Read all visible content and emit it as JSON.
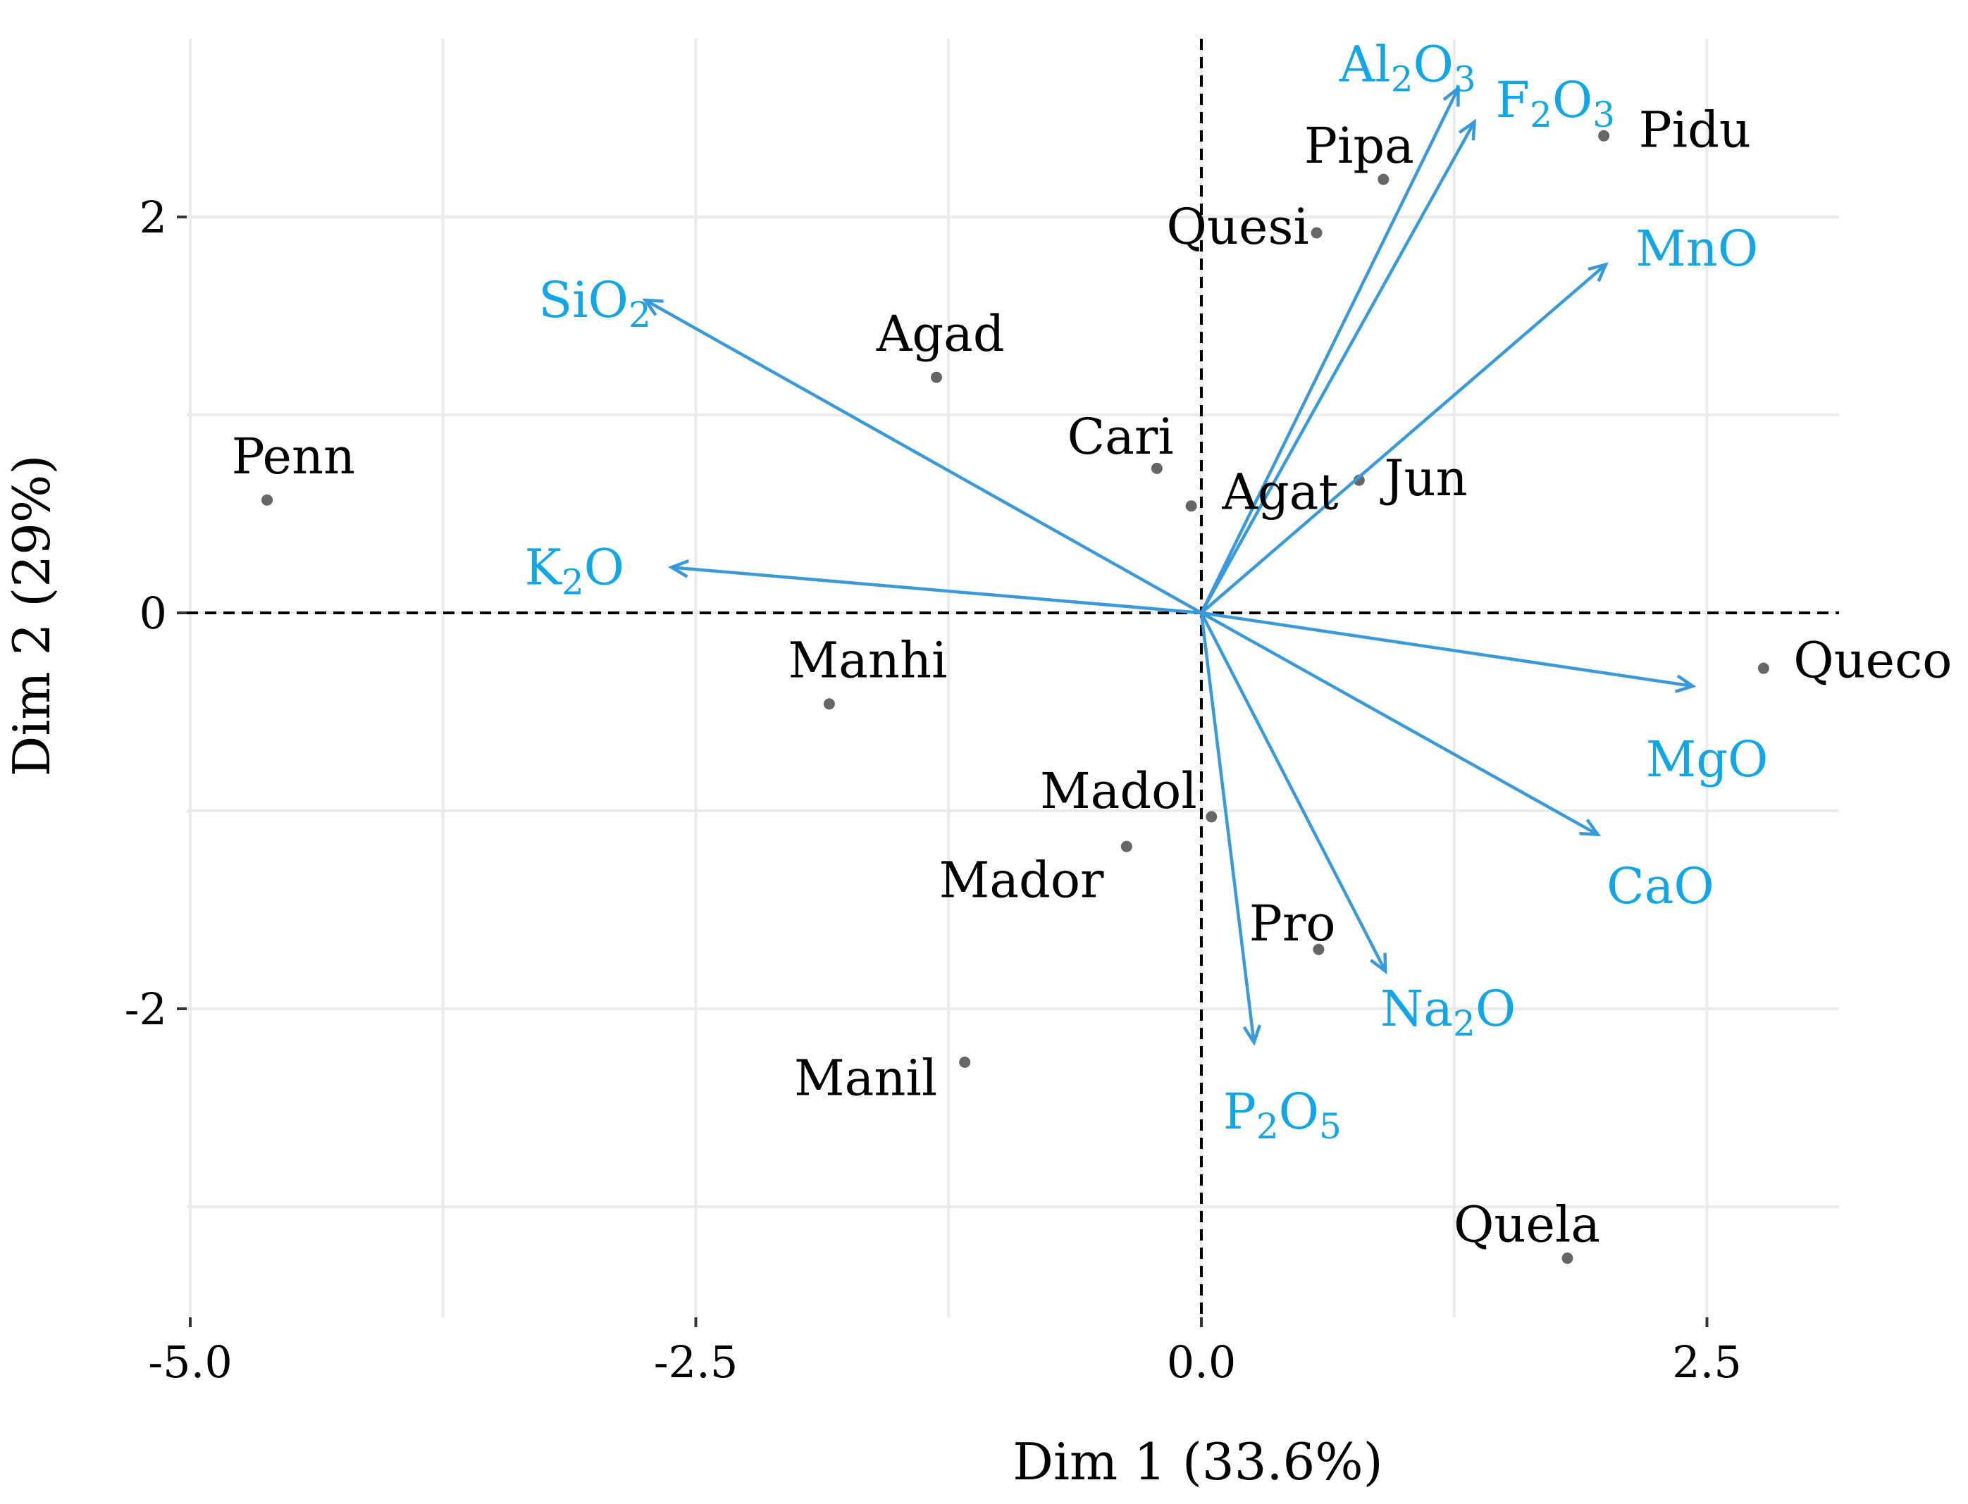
{
  "chart_data": {
    "type": "scatter",
    "subtype": "pca-biplot",
    "xlabel": "Dim 1 (33.6%)",
    "ylabel": "Dim 2 (29%)",
    "xlim": [
      -5.0,
      3.15
    ],
    "ylim": [
      -3.6,
      2.9
    ],
    "xticks": [
      -5.0,
      -2.5,
      0.0,
      2.5
    ],
    "xtick_labels": [
      "-5.0",
      "-2.5",
      "0.0",
      "2.5"
    ],
    "yticks": [
      -2,
      0,
      2
    ],
    "ytick_labels": [
      "-2",
      "0",
      "2"
    ],
    "x_minor_grid": [
      -3.75,
      -1.25,
      1.25
    ],
    "y_minor_grid": [
      -3,
      -1,
      1
    ],
    "grid": true,
    "reference_lines": {
      "x": 0,
      "y": 0,
      "style": "dashed"
    },
    "point_color": "#666666",
    "vector_color": "#3a9ad9",
    "vector_label_color": "#12a6e6",
    "observations": [
      {
        "name": "Penn",
        "x": -4.62,
        "y": 0.57,
        "label_dx": 0.13,
        "label_dy": 0.22
      },
      {
        "name": "Agad",
        "x": -1.31,
        "y": 1.19,
        "label_dx": 0.02,
        "label_dy": 0.22
      },
      {
        "name": "Cari",
        "x": -0.22,
        "y": 0.73,
        "label_dx": -0.18,
        "label_dy": 0.16
      },
      {
        "name": "Agat",
        "x": -0.05,
        "y": 0.54,
        "label_dx": 0.44,
        "label_dy": 0.07
      },
      {
        "name": "Jun",
        "x": 0.78,
        "y": 0.67,
        "label_dx": 0.33,
        "label_dy": 0.01
      },
      {
        "name": "Quesi",
        "x": 0.57,
        "y": 1.92,
        "label_dx": -0.39,
        "label_dy": 0.03
      },
      {
        "name": "Pipa",
        "x": 0.9,
        "y": 2.19,
        "label_dx": -0.12,
        "label_dy": 0.17
      },
      {
        "name": "Pidu",
        "x": 1.99,
        "y": 2.41,
        "label_dx": 0.45,
        "label_dy": 0.03
      },
      {
        "name": "Queco",
        "x": 2.78,
        "y": -0.28,
        "label_dx": 0.54,
        "label_dy": 0.04
      },
      {
        "name": "Manhi",
        "x": -1.84,
        "y": -0.46,
        "label_dx": 0.19,
        "label_dy": 0.22
      },
      {
        "name": "Madol",
        "x": 0.05,
        "y": -1.03,
        "label_dx": -0.46,
        "label_dy": 0.13
      },
      {
        "name": "Mador",
        "x": -0.37,
        "y": -1.18,
        "label_dx": -0.52,
        "label_dy": -0.17
      },
      {
        "name": "Pro",
        "x": 0.58,
        "y": -1.7,
        "label_dx": -0.13,
        "label_dy": 0.13
      },
      {
        "name": "Manil",
        "x": -1.17,
        "y": -2.27,
        "label_dx": -0.49,
        "label_dy": -0.08
      },
      {
        "name": "Quela",
        "x": 1.81,
        "y": -3.26,
        "label_dx": -0.2,
        "label_dy": 0.17
      }
    ],
    "variables": [
      {
        "name": "SiO2",
        "base": "SiO",
        "sub1": "2",
        "mid": "",
        "sub2": "",
        "x": -2.75,
        "y": 1.58,
        "label_x": -3.0,
        "label_y": 1.58
      },
      {
        "name": "K2O",
        "base": "K",
        "sub1": "2",
        "mid": "O",
        "sub2": "",
        "x": -2.62,
        "y": 0.23,
        "label_x": -3.1,
        "label_y": 0.23
      },
      {
        "name": "Al2O3",
        "base": "Al",
        "sub1": "2",
        "mid": "O",
        "sub2": "3",
        "x": 1.27,
        "y": 2.65,
        "label_x": 1.02,
        "label_y": 2.77
      },
      {
        "name": "F2O3",
        "base": "F",
        "sub1": "2",
        "mid": "O",
        "sub2": "3",
        "x": 1.35,
        "y": 2.48,
        "label_x": 1.75,
        "label_y": 2.59
      },
      {
        "name": "MnO",
        "base": "MnO",
        "sub1": "",
        "mid": "",
        "sub2": "",
        "x": 2.0,
        "y": 1.76,
        "label_x": 2.45,
        "label_y": 1.84
      },
      {
        "name": "MgO",
        "base": "MgO",
        "sub1": "",
        "mid": "",
        "sub2": "",
        "x": 2.43,
        "y": -0.37,
        "label_x": 2.5,
        "label_y": -0.74
      },
      {
        "name": "CaO",
        "base": "CaO",
        "sub1": "",
        "mid": "",
        "sub2": "",
        "x": 1.96,
        "y": -1.12,
        "label_x": 2.27,
        "label_y": -1.38
      },
      {
        "name": "Na2O",
        "base": "Na",
        "sub1": "2",
        "mid": "O",
        "sub2": "",
        "x": 0.91,
        "y": -1.81,
        "label_x": 1.22,
        "label_y": -2.0
      },
      {
        "name": "P2O5",
        "base": "P",
        "sub1": "2",
        "mid": "O",
        "sub2": "5",
        "x": 0.26,
        "y": -2.17,
        "label_x": 0.4,
        "label_y": -2.52
      }
    ]
  }
}
